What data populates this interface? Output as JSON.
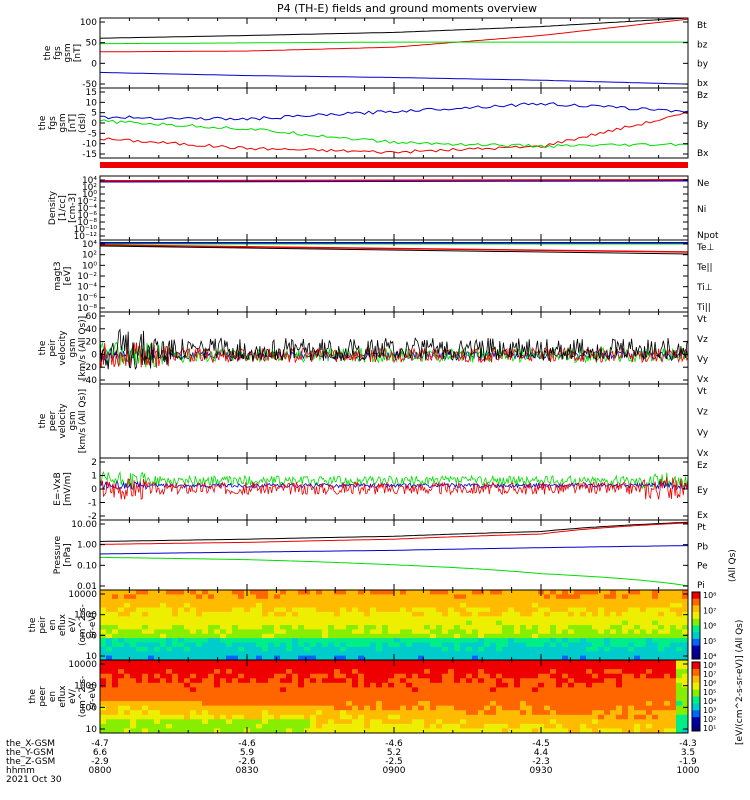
{
  "title": "P4 (TH-E) fields and ground moments overview",
  "colors": {
    "black": "#000000",
    "red": "#ee0000",
    "green": "#00dd00",
    "blue": "#0000cc"
  },
  "panels": [
    {
      "id": "fgs-gsm",
      "ylabel": [
        "the",
        "fgs",
        "gsm",
        "[nT]"
      ],
      "scale": "linear",
      "ticks": [
        "100",
        "50",
        "0",
        "-50"
      ],
      "legend": [
        {
          "label": "Bt",
          "color": "black"
        },
        {
          "label": "bz",
          "color": "red"
        },
        {
          "label": "by",
          "color": "green"
        },
        {
          "label": "bx",
          "color": "blue"
        }
      ]
    },
    {
      "id": "fgs-dsl",
      "ylabel": [
        "the",
        "fgs",
        "gsm",
        "[nT]",
        "(dsl)"
      ],
      "scale": "linear",
      "ticks": [
        "15",
        "10",
        "5",
        "0",
        "-5",
        "-10",
        "-15"
      ],
      "legend": [
        {
          "label": "Bz",
          "color": "red"
        },
        {
          "label": "By",
          "color": "green"
        },
        {
          "label": "Bx",
          "color": "blue"
        }
      ]
    },
    {
      "id": "density",
      "ylabel": [
        "Density",
        "[1/cc]",
        "[cm-3]"
      ],
      "scale": "log",
      "ticks": [
        "10⁴",
        "10²",
        "10⁰",
        "10⁻²",
        "10⁻⁴",
        "10⁻⁶",
        "10⁻⁸",
        "10⁻¹⁰",
        "10⁻¹²"
      ],
      "legend": [
        {
          "label": "Ne",
          "color": "red"
        },
        {
          "label": "Ni",
          "color": "black"
        },
        {
          "label": "Npot",
          "color": "blue"
        }
      ]
    },
    {
      "id": "temperature",
      "ylabel": [
        "magt3",
        "[eV]"
      ],
      "scale": "log",
      "ticks": [
        "10⁴",
        "10²",
        "10⁰",
        "10⁻²",
        "10⁻⁴",
        "10⁻⁶",
        "10⁻⁸"
      ],
      "legend": [
        {
          "label": "Te⊥",
          "color": "red"
        },
        {
          "label": "Te||",
          "color": "black"
        },
        {
          "label": "Ti⊥",
          "color": "blue"
        },
        {
          "label": "Ti||",
          "color": "green"
        }
      ]
    },
    {
      "id": "peir-velocity",
      "ylabel": [
        "the",
        "peir",
        "velocity",
        "gsm",
        "[km/s (All Qs)]"
      ],
      "scale": "linear",
      "ticks": [
        "60",
        "40",
        "20",
        "0",
        "-20",
        "-40"
      ],
      "legend": [
        {
          "label": "Vt",
          "color": "black"
        },
        {
          "label": "Vz",
          "color": "red"
        },
        {
          "label": "Vy",
          "color": "green"
        },
        {
          "label": "Vx",
          "color": "blue"
        }
      ]
    },
    {
      "id": "peer-velocity",
      "ylabel": [
        "the",
        "peer",
        "velocity",
        "gsm",
        "[km/s (All Qs)]"
      ],
      "scale": "linear",
      "ticks": [],
      "legend": [
        {
          "label": "Vt",
          "color": "black"
        },
        {
          "label": "Vz",
          "color": "red"
        },
        {
          "label": "Vy",
          "color": "green"
        },
        {
          "label": "Vx",
          "color": "blue"
        }
      ]
    },
    {
      "id": "efield",
      "ylabel": [
        "E=-VxB",
        "[mV/m]"
      ],
      "scale": "linear",
      "ticks": [
        "2",
        "1",
        "0",
        "-1",
        "-2"
      ],
      "legend": [
        {
          "label": "Ez",
          "color": "red"
        },
        {
          "label": "Ey",
          "color": "green"
        },
        {
          "label": "Ex",
          "color": "blue"
        }
      ]
    },
    {
      "id": "pressure",
      "ylabel": [
        "Pressure",
        "[nPa]"
      ],
      "scale": "log",
      "ticks": [
        "10.00",
        "1.00",
        "0.10",
        "0.01"
      ],
      "legend": [
        {
          "label": "Pt",
          "color": "black"
        },
        {
          "label": "Pb",
          "color": "red"
        },
        {
          "label": "Pe",
          "color": "green"
        },
        {
          "label": "Pi",
          "color": "blue"
        }
      ],
      "side_label": "(All Qs)"
    },
    {
      "id": "peir-spec",
      "ylabel": [
        "the",
        "peir",
        "en",
        "eflux",
        "eV/",
        "(cm^2-s-",
        "sr-eV)"
      ],
      "scale": "log",
      "ticks": [
        "10000",
        "1000",
        "100",
        "10"
      ]
    },
    {
      "id": "peer-spec",
      "ylabel": [
        "the",
        "peer",
        "en",
        "eflux",
        "eV/",
        "(cm^2-s-",
        "sr-eV)"
      ],
      "scale": "log",
      "ticks": [
        "10000",
        "1000",
        "100",
        "10"
      ]
    }
  ],
  "colorbars": [
    {
      "ticks": [
        "10⁸",
        "10⁷",
        "10⁶",
        "10⁵",
        "10⁴"
      ]
    },
    {
      "ticks": [
        "10⁸",
        "10⁷",
        "10⁶",
        "10⁵",
        "10⁴",
        "10³",
        "10²",
        "10¹"
      ]
    }
  ],
  "colorbar_label": "[eV/(cm^2-s-sr-eV)] (All Qs)",
  "x_axis": {
    "row_labels": [
      "the_X-GSM",
      "the_Y-GSM",
      "the_Z-GSM",
      "hhmm"
    ],
    "date": "2021 Oct 30",
    "columns": [
      {
        "values": [
          "-4.7",
          "6.6",
          "-2.9",
          "0800"
        ]
      },
      {
        "values": [
          "-4.6",
          "5.9",
          "-2.6",
          "0830"
        ]
      },
      {
        "values": [
          "-4.6",
          "5.2",
          "-2.5",
          "0900"
        ]
      },
      {
        "values": [
          "-4.5",
          "4.4",
          "-2.3",
          "0930"
        ]
      },
      {
        "values": [
          "-4.3",
          "3.5",
          "-1.9",
          "1000"
        ]
      }
    ]
  },
  "chart_data": {
    "type": "line",
    "title": "P4 (TH-E) fields and ground moments overview",
    "x_time_ticks": [
      "0800",
      "0830",
      "0900",
      "0930",
      "1000"
    ],
    "panels": [
      {
        "id": "fgs-gsm",
        "ylim": [
          -80,
          100
        ],
        "series": [
          {
            "name": "Bt",
            "color": "black",
            "x": [
              "0800",
              "0830",
              "0900",
              "0930",
              "1000"
            ],
            "values": [
              48,
              55,
              63,
              78,
              100
            ]
          },
          {
            "name": "bz",
            "color": "red",
            "x": [
              "0800",
              "0830",
              "0900",
              "0930",
              "1000"
            ],
            "values": [
              13,
              15,
              25,
              55,
              97
            ]
          },
          {
            "name": "by",
            "color": "green",
            "x": [
              "0800",
              "0830",
              "0900",
              "0930",
              "1000"
            ],
            "values": [
              34,
              36,
              38,
              38,
              38
            ]
          },
          {
            "name": "bx",
            "color": "blue",
            "x": [
              "0800",
              "0830",
              "0900",
              "0930",
              "1000"
            ],
            "values": [
              -40,
              -48,
              -53,
              -60,
              -70
            ]
          }
        ]
      },
      {
        "id": "fgs-dsl",
        "ylim": [
          -18,
          18
        ],
        "series": [
          {
            "name": "Bz",
            "color": "red",
            "x": [
              "0800",
              "0830",
              "0900",
              "0930",
              "1000"
            ],
            "values": [
              -8,
              -13,
              -15,
              -12,
              5
            ]
          },
          {
            "name": "By",
            "color": "green",
            "x": [
              "0800",
              "0830",
              "0900",
              "0930",
              "1000"
            ],
            "values": [
              1,
              -3,
              -10,
              -12,
              -11
            ]
          },
          {
            "name": "Bx",
            "color": "blue",
            "x": [
              "0800",
              "0830",
              "0900",
              "0930",
              "1000"
            ],
            "values": [
              3,
              2,
              6,
              10,
              6
            ]
          }
        ]
      },
      {
        "id": "efield",
        "ylim": [
          -2.5,
          2
        ],
        "series": [
          {
            "name": "Ez",
            "color": "red",
            "approx": [
              0,
              -0.3
            ]
          },
          {
            "name": "Ey",
            "color": "green",
            "approx": [
              0.3,
              0.5
            ]
          },
          {
            "name": "Ex",
            "color": "blue",
            "approx": [
              0,
              0
            ]
          }
        ]
      },
      {
        "id": "pressure",
        "ylim": [
          0.01,
          10
        ],
        "series": [
          {
            "name": "Pt",
            "color": "black",
            "x": [
              "0800",
              "0830",
              "0900",
              "0930",
              "1000"
            ],
            "values": [
              1.2,
              1.5,
              2.0,
              3.2,
              8.0
            ]
          },
          {
            "name": "Pb",
            "color": "red",
            "x": [
              "0800",
              "0830",
              "0900",
              "0930",
              "1000"
            ],
            "values": [
              0.9,
              1.1,
              1.5,
              2.5,
              7.5
            ]
          },
          {
            "name": "Pe",
            "color": "green",
            "x": [
              "0800",
              "0830",
              "0900",
              "0930",
              "1000"
            ],
            "values": [
              0.25,
              0.2,
              0.12,
              0.05,
              0.015
            ]
          },
          {
            "name": "Pi",
            "color": "blue",
            "x": [
              "0800",
              "0830",
              "0900",
              "0930",
              "1000"
            ],
            "values": [
              0.35,
              0.42,
              0.5,
              0.65,
              0.8
            ]
          }
        ]
      }
    ]
  }
}
